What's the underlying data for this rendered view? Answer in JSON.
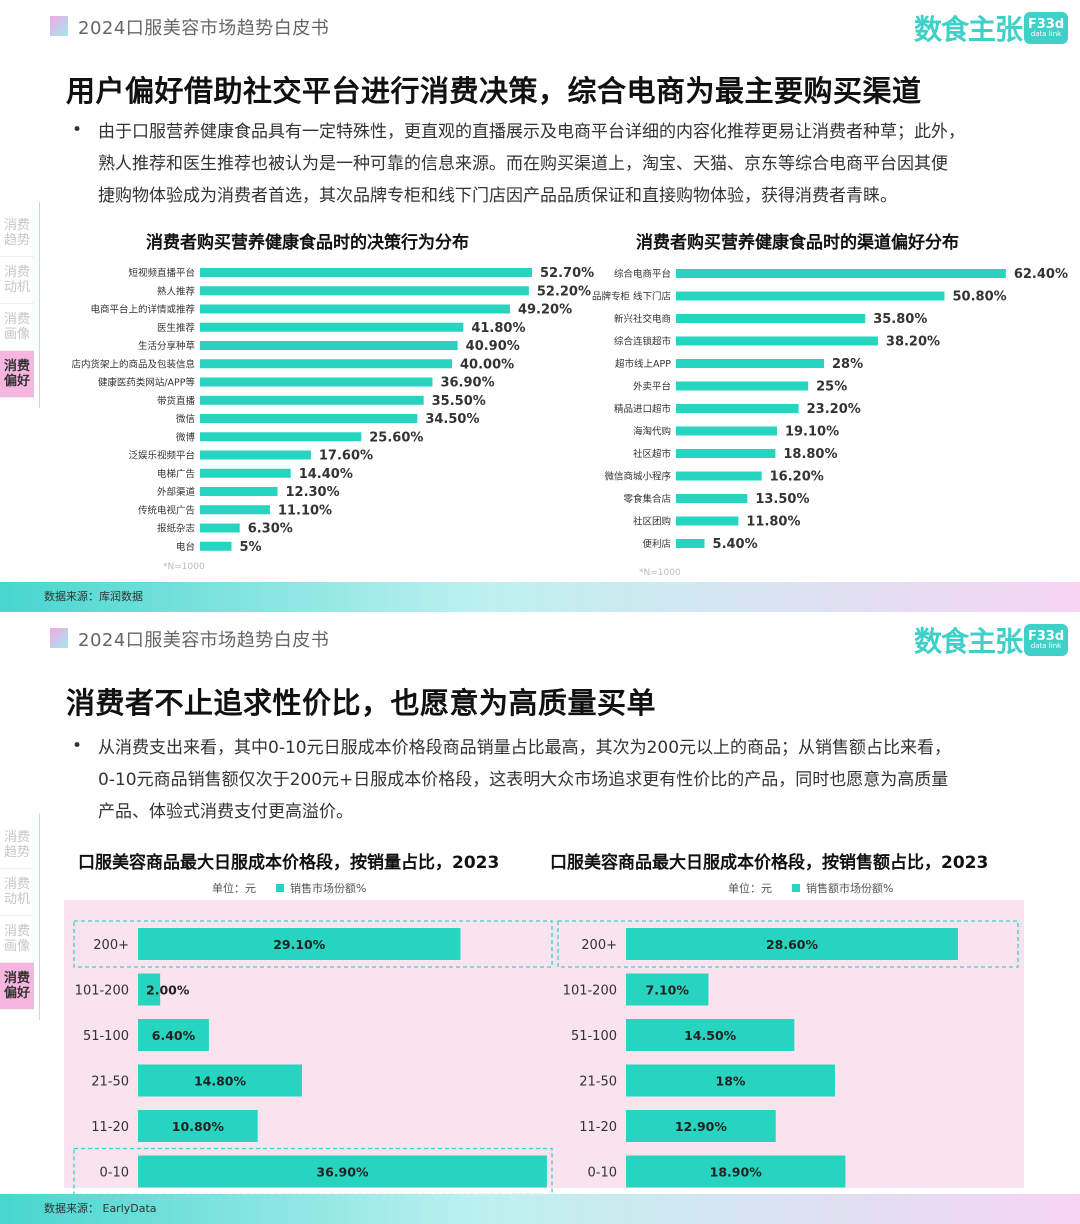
{
  "colors": {
    "bar": "#27d4c0",
    "accent_pink": "#f7b6df",
    "brand": "#3fd0c8"
  },
  "slide1": {
    "header_title": "2024口服美容市场趋势白皮书",
    "logo_text": "数食主张",
    "logo_box_1": "F33d",
    "logo_box_2": "data link",
    "title": "用户偏好借助社交平台进行消费决策，综合电商为最主要购买渠道",
    "bullet": "•",
    "para_lines": [
      "由于口服营养健康食品具有一定特殊性，更直观的直播展示及电商平台详细的内容化推荐更易让消费者种草；此外，",
      "熟人推荐和医生推荐也被认为是一种可靠的信息来源。而在购买渠道上，淘宝、天猫、京东等综合电商平台因其便",
      "捷购物体验成为消费者首选，其次品牌专柜和线下门店因产品品质保证和直接购物体验，获得消费者青睐。"
    ],
    "side_nav": [
      "消费趋势",
      "消费动机",
      "消费画像",
      "消费偏好"
    ],
    "footer": "数据来源：库润数据"
  },
  "slide2": {
    "header_title": "2024口服美容市场趋势白皮书",
    "logo_text": "数食主张",
    "logo_box_1": "F33d",
    "logo_box_2": "data link",
    "title": "消费者不止追求性价比，也愿意为高质量买单",
    "bullet": "•",
    "para_lines": [
      "从消费支出来看，其中0-10元日服成本价格段商品销量占比最高，其次为200元以上的商品；从销售额占比来看，",
      "0-10元商品销售额仅次于200元+日服成本价格段，这表明大众市场追求更有性价比的产品，同时也愿意为高质量",
      "产品、体验式消费支付更高溢价。"
    ],
    "side_nav": [
      "消费趋势",
      "消费动机",
      "消费画像",
      "消费偏好"
    ],
    "footer": "数据来源： EarlyData",
    "unit_left": "单位：元",
    "legend_left": "销售市场份额%",
    "unit_right": "单位：元",
    "legend_right": "销售额市场份额%"
  },
  "chart_data": [
    {
      "type": "bar",
      "orientation": "horizontal",
      "title": "消费者购买营养健康食品时的决策行为分布",
      "note": "*N=1000",
      "categories": [
        "短视频直播平台",
        "熟人推荐",
        "电商平台上的详情或推荐",
        "医生推荐",
        "生活分享种草",
        "店内货架上的商品及包装信息",
        "健康医药类网站/APP等",
        "带货直播",
        "微信",
        "微博",
        "泛娱乐视频平台",
        "电梯广告",
        "外部渠道",
        "传统电视广告",
        "报纸杂志",
        "电台"
      ],
      "values": [
        52.7,
        52.2,
        49.2,
        41.8,
        40.9,
        40.0,
        36.9,
        35.5,
        34.5,
        25.6,
        17.6,
        14.4,
        12.3,
        11.1,
        6.3,
        5
      ],
      "labels": [
        "52.70%",
        "52.20%",
        "49.20%",
        "41.80%",
        "40.90%",
        "40.00%",
        "36.90%",
        "35.50%",
        "34.50%",
        "25.60%",
        "17.60%",
        "14.40%",
        "12.30%",
        "11.10%",
        "6.30%",
        "5%"
      ],
      "xlim": [
        0,
        60
      ]
    },
    {
      "type": "bar",
      "orientation": "horizontal",
      "title": "消费者购买营养健康食品时的渠道偏好分布",
      "note": "*N=1000",
      "categories": [
        "综合电商平台",
        "品牌专柜 线下门店",
        "新兴社交电商",
        "综合连锁超市",
        "超市线上APP",
        "外卖平台",
        "精品进口超市",
        "海淘代购",
        "社区超市",
        "微信商城小程序",
        "零食集合店",
        "社区团购",
        "便利店"
      ],
      "values": [
        62.4,
        50.8,
        35.8,
        38.2,
        28,
        25,
        23.2,
        19.1,
        18.8,
        16.2,
        13.5,
        11.8,
        5.4
      ],
      "labels": [
        "62.40%",
        "50.80%",
        "35.80%",
        "38.20%",
        "28%",
        "25%",
        "23.20%",
        "19.10%",
        "18.80%",
        "16.20%",
        "13.50%",
        "11.80%",
        "5.40%"
      ],
      "xlim": [
        0,
        70
      ]
    },
    {
      "type": "bar",
      "orientation": "horizontal",
      "title": "口服美容商品最大日服成本价格段，按销量占比，2023",
      "categories": [
        "200+",
        "101-200",
        "51-100",
        "21-50",
        "11-20",
        "0-10"
      ],
      "values": [
        29.1,
        2.0,
        6.4,
        14.8,
        10.8,
        36.9
      ],
      "labels": [
        "29.10%",
        "2.00%",
        "6.40%",
        "14.80%",
        "10.80%",
        "36.90%"
      ],
      "xlim": [
        0,
        37
      ],
      "highlighted": [
        "200+",
        "0-10"
      ]
    },
    {
      "type": "bar",
      "orientation": "horizontal",
      "title": "口服美容商品最大日服成本价格段，按销售额占比，2023",
      "categories": [
        "200+",
        "101-200",
        "51-100",
        "21-50",
        "11-20",
        "0-10"
      ],
      "values": [
        28.6,
        7.1,
        14.5,
        18,
        12.9,
        18.9
      ],
      "labels": [
        "28.60%",
        "7.10%",
        "14.50%",
        "18%",
        "12.90%",
        "18.90%"
      ],
      "xlim": [
        0,
        28.6
      ],
      "highlighted": [
        "200+"
      ]
    }
  ]
}
